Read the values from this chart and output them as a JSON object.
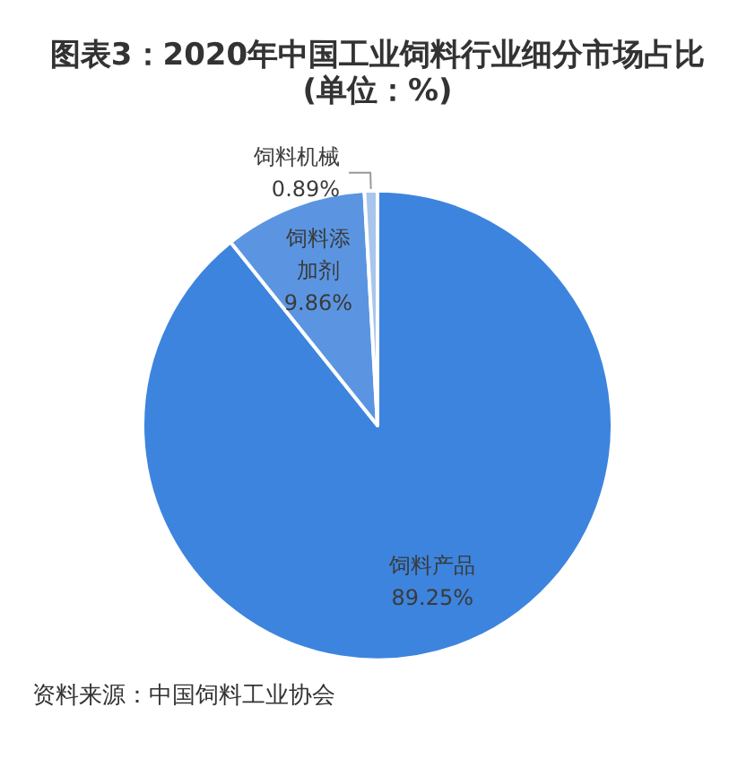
{
  "chart_data": {
    "type": "pie",
    "title": "图表3：2020年中国工业饲料行业细分市场占比(单位：%)",
    "categories": [
      "饲料产品",
      "饲料添加剂",
      "饲料机械"
    ],
    "values": [
      89.25,
      9.86,
      0.89
    ],
    "value_labels": [
      "89.25%",
      "9.86%",
      "0.89%"
    ],
    "colors": [
      "#3d84de",
      "#5b95e2",
      "#a8c5ec"
    ],
    "legend": false,
    "annotations": [
      "资料来源：中国饲料工业协会"
    ]
  }
}
